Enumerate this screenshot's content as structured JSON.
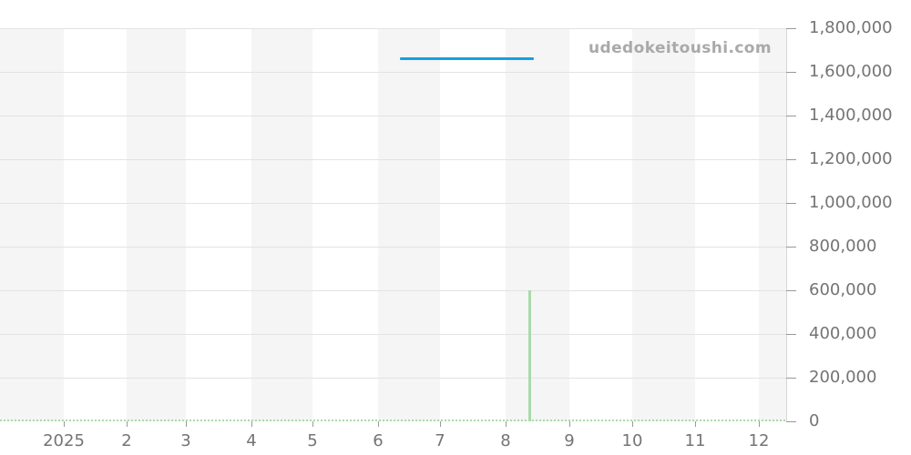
{
  "watermark": "udedokeitoushi.com",
  "colors": {
    "price_line": "#16a0e3",
    "activity_line": "#a9daab",
    "stripe": "#f5f5f5",
    "gridline": "#e3e3e3",
    "axis_tick": "#999999",
    "axis_line": "#d6d6d6",
    "label_text": "#747474",
    "watermark_text": "#a9a9a9"
  },
  "chart_data": {
    "type": "line",
    "title": "",
    "legend_position": "none",
    "grid": "horizontal-only",
    "background_stripes": {
      "color": "#f5f5f5",
      "alternating": "monthly"
    },
    "x_axis": {
      "unit": "month",
      "domain": [
        0,
        12.43
      ],
      "tick_values": [
        1,
        2,
        3,
        4,
        5,
        6,
        7,
        8,
        9,
        10,
        11,
        12
      ],
      "tick_labels": [
        "2025",
        "2",
        "3",
        "4",
        "5",
        "6",
        "7",
        "8",
        "9",
        "10",
        "11",
        "12"
      ]
    },
    "y_axis": {
      "position": "right",
      "domain": [
        0,
        1800000
      ],
      "tick_values": [
        0,
        200000,
        400000,
        600000,
        800000,
        1000000,
        1200000,
        1400000,
        1600000,
        1800000
      ],
      "tick_labels": [
        "0",
        "200,000",
        "400,000",
        "600,000",
        "800,000",
        "1,000,000",
        "1,200,000",
        "1,400,000",
        "1,600,000",
        "1,800,000"
      ]
    },
    "series": [
      {
        "name": "price",
        "type": "line",
        "render": "segment",
        "color": "#16a0e3",
        "thickness": 3,
        "points": [
          [
            6.35,
            1660000
          ],
          [
            8.44,
            1660000
          ]
        ]
      },
      {
        "name": "activity",
        "type": "line",
        "render": "baseline-spike",
        "style": "dashed",
        "color": "#a9daab",
        "baseline": 0,
        "spike": {
          "x": 8.37,
          "value": 600000
        },
        "points": [
          [
            0,
            0
          ],
          [
            8.37,
            0
          ],
          [
            8.37,
            600000
          ],
          [
            8.37,
            0
          ],
          [
            12.43,
            0
          ]
        ]
      }
    ]
  }
}
